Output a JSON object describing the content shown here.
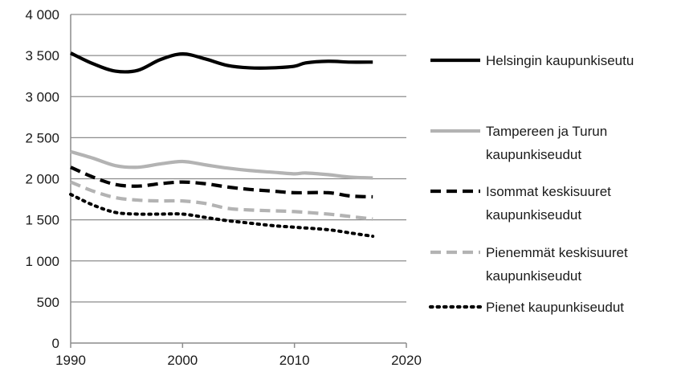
{
  "chart_data": {
    "type": "line",
    "title": "",
    "xlabel": "",
    "ylabel": "",
    "xlim": [
      1990,
      2020
    ],
    "ylim": [
      0,
      4000
    ],
    "x_ticks": [
      1990,
      2000,
      2010,
      2020
    ],
    "x_tick_labels": [
      "1990",
      "2000",
      "2010",
      "2020"
    ],
    "y_ticks": [
      0,
      500,
      1000,
      1500,
      2000,
      2500,
      3000,
      3500,
      4000
    ],
    "y_tick_labels": [
      "0",
      "500",
      "1 000",
      "1 500",
      "2 000",
      "2 500",
      "3 000",
      "3 500",
      "4 000"
    ],
    "grid": "horizontal",
    "legend_position": "right",
    "series": [
      {
        "name": "Helsingin kaupunkiseutu",
        "legend_lines": [
          "Helsingin kaupunkiseutu"
        ],
        "color": "#000000",
        "dash": "solid",
        "x": [
          1990,
          1992,
          1994,
          1996,
          1998,
          2000,
          2002,
          2004,
          2006,
          2008,
          2010,
          2011,
          2013,
          2015,
          2017
        ],
        "y": [
          3530,
          3400,
          3310,
          3320,
          3450,
          3520,
          3460,
          3380,
          3350,
          3350,
          3370,
          3410,
          3430,
          3420,
          3420
        ]
      },
      {
        "name": "Tampereen ja Turun kaupunkiseudut",
        "legend_lines": [
          "Tampereen ja Turun",
          "kaupunkiseudut"
        ],
        "color": "#b3b3b3",
        "dash": "solid",
        "x": [
          1990,
          1992,
          1994,
          1996,
          1998,
          2000,
          2002,
          2004,
          2006,
          2008,
          2010,
          2011,
          2013,
          2015,
          2017
        ],
        "y": [
          2330,
          2250,
          2160,
          2140,
          2180,
          2210,
          2170,
          2130,
          2100,
          2080,
          2060,
          2070,
          2050,
          2020,
          2010
        ]
      },
      {
        "name": "Isommat keskisuuret kaupunkiseudut",
        "legend_lines": [
          "Isommat keskisuuret",
          "kaupunkiseudut"
        ],
        "color": "#000000",
        "dash": "dash",
        "x": [
          1990,
          1992,
          1994,
          1996,
          1998,
          2000,
          2002,
          2004,
          2006,
          2008,
          2010,
          2013,
          2015,
          2017
        ],
        "y": [
          2140,
          2020,
          1930,
          1910,
          1940,
          1960,
          1940,
          1900,
          1870,
          1850,
          1830,
          1830,
          1790,
          1780
        ]
      },
      {
        "name": "Pienemmät keskisuuret kaupunkiseudut",
        "legend_lines": [
          "Pienemmät keskisuuret",
          "kaupunkiseudut"
        ],
        "color": "#b3b3b3",
        "dash": "dash",
        "x": [
          1990,
          1992,
          1994,
          1996,
          1998,
          2000,
          2002,
          2004,
          2006,
          2008,
          2010,
          2013,
          2015,
          2017
        ],
        "y": [
          1960,
          1850,
          1770,
          1740,
          1730,
          1730,
          1700,
          1640,
          1620,
          1610,
          1600,
          1570,
          1540,
          1510
        ]
      },
      {
        "name": "Pienet kaupunkiseudut",
        "legend_lines": [
          "Pienet kaupunkiseudut"
        ],
        "color": "#000000",
        "dash": "dot",
        "x": [
          1990,
          1992,
          1994,
          1996,
          1998,
          2000,
          2002,
          2004,
          2006,
          2008,
          2010,
          2013,
          2015,
          2017
        ],
        "y": [
          1810,
          1680,
          1590,
          1570,
          1570,
          1570,
          1530,
          1490,
          1460,
          1430,
          1410,
          1380,
          1340,
          1300
        ]
      }
    ]
  }
}
